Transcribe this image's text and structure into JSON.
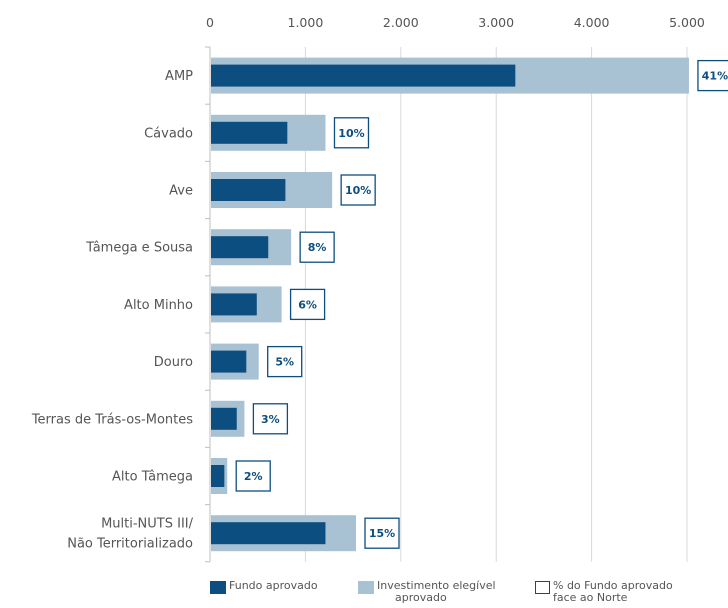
{
  "chart_data": {
    "type": "bar",
    "orientation": "horizontal",
    "xlim": [
      0,
      5000
    ],
    "x_ticks": [
      {
        "value": 0,
        "label": "0"
      },
      {
        "value": 1000,
        "label": "1.000"
      },
      {
        "value": 2000,
        "label": "2.000"
      },
      {
        "value": 3000,
        "label": "3.000"
      },
      {
        "value": 4000,
        "label": "4.000"
      },
      {
        "value": 5000,
        "label": "5.000"
      }
    ],
    "axis_position": "top",
    "grid": true,
    "categories": [
      [
        "AMP"
      ],
      [
        "Cávado"
      ],
      [
        "Ave"
      ],
      [
        "Tâmega e Sousa"
      ],
      [
        "Alto Minho"
      ],
      [
        "Douro"
      ],
      [
        "Terras de Trás-os-Montes"
      ],
      [
        "Alto Tâmega"
      ],
      [
        "Multi-NUTS III/",
        "Não Territorializado"
      ]
    ],
    "series": [
      {
        "name": "Investimento elegível aprovado",
        "color": "#a9c2d3",
        "values": [
          5010,
          1200,
          1270,
          840,
          740,
          500,
          350,
          170,
          1520
        ]
      },
      {
        "name": "Fundo aprovado",
        "color": "#0d4e80",
        "values": [
          3190,
          800,
          780,
          600,
          480,
          370,
          270,
          140,
          1200
        ]
      }
    ],
    "percent_labels": [
      "41%",
      "10%",
      "10%",
      "8%",
      "6%",
      "5%",
      "3%",
      "2%",
      "15%"
    ],
    "legend_position": "bottom"
  },
  "legend": {
    "fundo": "Fundo aprovado",
    "investimento_line1": "Investimento elegível",
    "investimento_line2": "aprovado",
    "percent_line1": "% do Fundo aprovado",
    "percent_line2": "face ao Norte"
  },
  "colors": {
    "dark": "#0d4e80",
    "light": "#a9c2d3",
    "grid": "#d9d9d9",
    "text": "#555555"
  }
}
